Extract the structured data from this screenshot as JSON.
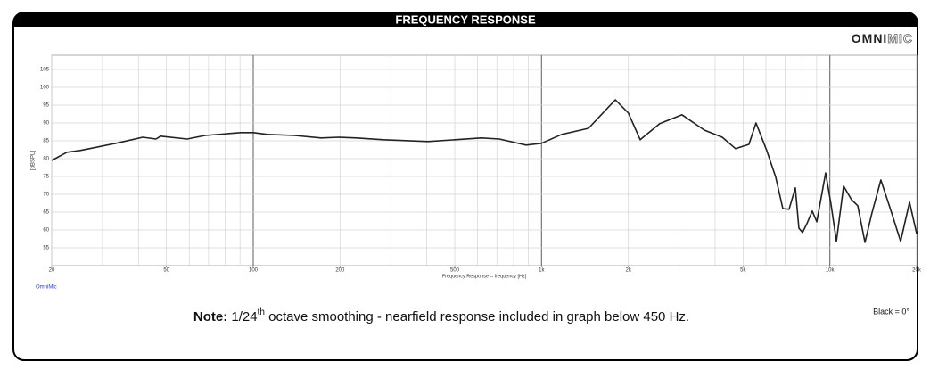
{
  "chart_data": {
    "type": "line",
    "title": "FREQUENCY RESPONSE",
    "logo": {
      "bold": "OMNI",
      "outline": "MIC"
    },
    "x_label": "Frequency Response -- frequency [Hz]",
    "y_label": "[dBSPL]",
    "brand": "OmniMic",
    "legend_note": "Black = 0°",
    "note": {
      "label": "Note:",
      "text1": " 1/24",
      "sup": "th",
      "text2": " octave smoothing - nearfield response included in graph below 450 Hz."
    },
    "xscale": "log",
    "xlim": [
      20,
      20000
    ],
    "ylim": [
      50,
      109
    ],
    "xticks": [
      20,
      50,
      100,
      200,
      500,
      {
        "value": 1000,
        "label": "1k"
      },
      {
        "value": 2000,
        "label": "2k"
      },
      {
        "value": 5000,
        "label": "5k"
      },
      {
        "value": 10000,
        "label": "10k"
      },
      {
        "value": 20000,
        "label": "20k"
      }
    ],
    "xgrid": [
      20,
      30,
      40,
      50,
      60,
      70,
      80,
      90,
      100,
      200,
      300,
      400,
      500,
      600,
      700,
      800,
      900,
      1000,
      2000,
      3000,
      4000,
      5000,
      6000,
      7000,
      8000,
      9000,
      10000,
      20000
    ],
    "yticks": [
      55,
      60,
      65,
      70,
      75,
      80,
      85,
      90,
      95,
      100,
      105
    ],
    "grid": true,
    "color": "#222222",
    "x": [
      20,
      22.6,
      25.1,
      27,
      33.4,
      41.4,
      46,
      47.7,
      59,
      68.1,
      90.5,
      100,
      112,
      139,
      172,
      198,
      228,
      283,
      404,
      619,
      714,
      884,
      1000,
      1175,
      1455,
      1803,
      2000,
      2199,
      2570,
      3070,
      3670,
      4235,
      4710,
      5240,
      5545,
      6040,
      6490,
      6870,
      7220,
      7590,
      7810,
      8040,
      8330,
      8690,
      9010,
      9670,
      10090,
      10540,
      11160,
      11890,
      12500,
      13240,
      14000,
      15030,
      16380,
      17600,
      18900,
      20000
    ],
    "values": [
      79.5,
      81.8,
      82.3,
      82.8,
      84.3,
      86,
      85.5,
      86.3,
      85.5,
      86.5,
      87.3,
      87.3,
      86.8,
      86.5,
      85.8,
      86,
      85.8,
      85.3,
      84.8,
      85.8,
      85.5,
      83.8,
      84.3,
      86.8,
      88.5,
      96.5,
      92.8,
      85.3,
      89.8,
      92.3,
      88,
      86,
      82.8,
      84,
      90,
      82.3,
      74.8,
      66,
      65.8,
      71.8,
      60.5,
      59.3,
      61.8,
      65.3,
      62.3,
      76,
      67.3,
      56.8,
      72.3,
      68.5,
      66.8,
      56.5,
      64.8,
      74,
      64.8,
      56.8,
      67.8,
      59
    ]
  }
}
